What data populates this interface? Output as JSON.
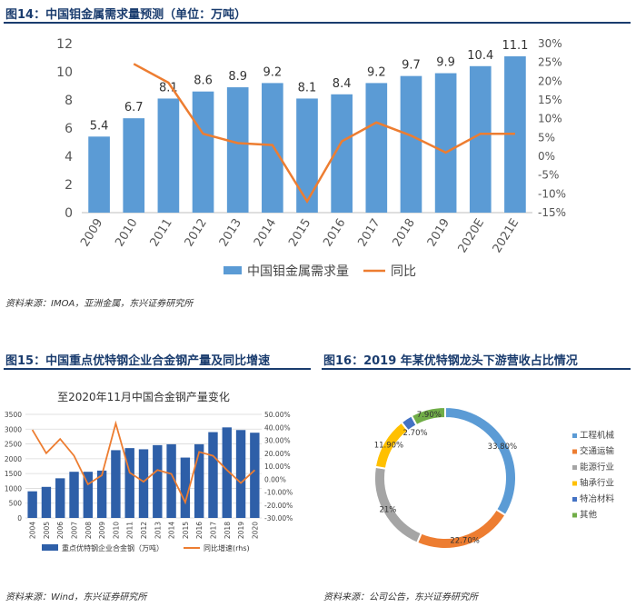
{
  "fig14": {
    "title": "图14：中国钼金属需求量预测（单位：万吨）",
    "source": "资料来源：IMOA，亚洲金属，东兴证券研究所",
    "chart_data": {
      "type": "bar",
      "title": "图14：中国钼金属需求量预测（单位：万吨）",
      "categories": [
        "2009",
        "2010",
        "2011",
        "2012",
        "2013",
        "2014",
        "2015",
        "2016",
        "2017",
        "2018",
        "2019",
        "2020E",
        "2021E"
      ],
      "series": [
        {
          "name": "中国钼金属需求量",
          "type": "bar",
          "axis": "left",
          "color": "#5b9bd5",
          "values": [
            5.4,
            6.7,
            8.1,
            8.6,
            8.9,
            9.2,
            8.1,
            8.4,
            9.2,
            9.7,
            9.9,
            10.4,
            11.1
          ]
        },
        {
          "name": "同比",
          "type": "line",
          "axis": "right",
          "color": "#ed7d31",
          "values": [
            null,
            24.6,
            19.6,
            6.0,
            3.5,
            3.0,
            -12.0,
            4.0,
            9.0,
            5.5,
            1.0,
            6.0,
            6.0
          ]
        }
      ],
      "y_left": {
        "min": 0,
        "max": 12,
        "ticks": [
          0,
          2,
          4,
          6,
          8,
          10,
          12
        ]
      },
      "y_right": {
        "min": -15,
        "max": 30,
        "ticks": [
          "-15%",
          "-10%",
          "-5%",
          "0%",
          "5%",
          "10%",
          "15%",
          "20%",
          "25%",
          "30%"
        ]
      },
      "legend": "bottom",
      "grid": false
    }
  },
  "fig15": {
    "title": "图15：中国重点优特钢企业合金钢产量及同比增速",
    "source": "资料来源：Wind，东兴证券研究所",
    "chart_data": {
      "type": "bar",
      "title": "至2020年11月中国合金钢产量变化",
      "categories": [
        "2004",
        "2005",
        "2006",
        "2007",
        "2008",
        "2009",
        "2010",
        "2011",
        "2012",
        "2013",
        "2014",
        "2015",
        "2016",
        "2017",
        "2018",
        "2019",
        "2020"
      ],
      "series": [
        {
          "name": "重点优特钢企业合金钢（万吨）",
          "type": "bar",
          "axis": "left",
          "color": "#2e5fa8",
          "values": [
            900,
            1050,
            1340,
            1560,
            1560,
            1600,
            2290,
            2360,
            2320,
            2460,
            2490,
            2040,
            2490,
            2900,
            3060,
            2970,
            2880
          ]
        },
        {
          "name": "同比增速(rhs)",
          "type": "line",
          "axis": "right",
          "color": "#ed7d31",
          "values": [
            38,
            20,
            31,
            18,
            -4,
            3,
            43,
            5,
            -2,
            7,
            4,
            -18,
            21,
            18,
            7,
            -3,
            7
          ]
        }
      ],
      "y_left": {
        "min": 0,
        "max": 3500,
        "ticks": [
          0,
          500,
          1000,
          1500,
          2000,
          2500,
          3000,
          3500
        ]
      },
      "y_right": {
        "min": -30,
        "max": 50,
        "ticks": [
          "-30.00%",
          "-20.00%",
          "-10.00%",
          "0.00%",
          "10.00%",
          "20.00%",
          "30.00%",
          "40.00%",
          "50.00%"
        ]
      },
      "legend": "bottom",
      "grid": true
    }
  },
  "fig16": {
    "title": "图16：2019 年某优特钢龙头下游营收占比情况",
    "source": "资料来源：公司公告，东兴证券研究所",
    "chart_data": {
      "type": "pie",
      "donut": true,
      "slices": [
        {
          "name": "工程机械",
          "value": 33.8,
          "label": "33.80%",
          "color": "#5b9bd5"
        },
        {
          "name": "交通运输",
          "value": 22.7,
          "label": "22.70%",
          "color": "#ed7d31"
        },
        {
          "name": "能源行业",
          "value": 21,
          "label": "21%",
          "color": "#a5a5a5"
        },
        {
          "name": "轴承行业",
          "value": 11.9,
          "label": "11.90%",
          "color": "#ffc000"
        },
        {
          "name": "特冶材料",
          "value": 2.7,
          "label": "2.70%",
          "color": "#4472c4"
        },
        {
          "name": "其他",
          "value": 7.9,
          "label": "7.90%",
          "color": "#70ad47"
        }
      ],
      "legend": "right"
    }
  }
}
